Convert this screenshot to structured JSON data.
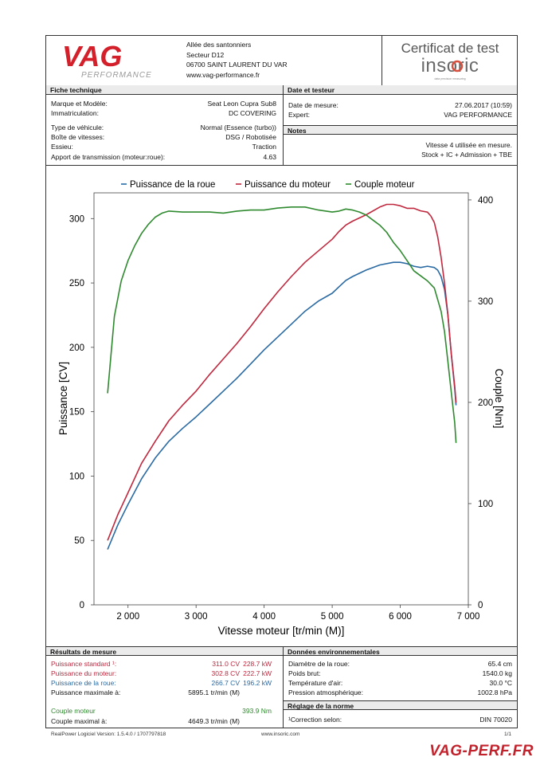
{
  "header": {
    "address": [
      "Allée des santonniers",
      "Secteur D12",
      "06700 SAINT LAURENT DU VAR",
      "www.vag-performance.fr"
    ],
    "logo_text": "VAG",
    "logo_sub": "PERFORMANCE",
    "cert_title": "Certificat de test",
    "cert_brand": "insoric",
    "cert_tagline": "data precision measuring"
  },
  "fiche": {
    "title": "Fiche technique",
    "rows": [
      {
        "label": "Marque et Modèle:",
        "value": "Seat Leon Cupra Sub8"
      },
      {
        "label": "Immatriculation:",
        "value": "DC COVERING"
      },
      {
        "label": "Type de véhicule:",
        "value": "Normal (Essence (turbo))"
      },
      {
        "label": "Boîte de vitesses:",
        "value": "DSG / Robotisée"
      },
      {
        "label": "Essieu:",
        "value": "Traction"
      },
      {
        "label": "Apport de transmission (moteur:roue):",
        "value": "4.63"
      }
    ]
  },
  "date_testeur": {
    "title": "Date et testeur",
    "rows": [
      {
        "label": "Date de mesure:",
        "value": "27.06.2017 (10:59)"
      },
      {
        "label": "Expert:",
        "value": "VAG PERFORMANCE"
      }
    ]
  },
  "notes": {
    "title": "Notes",
    "lines": [
      "Vitesse 4 utilisée en mesure.",
      "Stock + IC + Admission + TBE"
    ]
  },
  "chart_data": {
    "type": "line",
    "xlabel": "Vitesse moteur [tr/min (M)]",
    "ylabel": "Puissance [CV]",
    "y2label": "Couple [Nm]",
    "xlim": [
      1500,
      7000
    ],
    "ylim": [
      0,
      320
    ],
    "y2lim": [
      0,
      407
    ],
    "x_ticks": [
      "2 000",
      "3 000",
      "4 000",
      "5 000",
      "6 000",
      "7 000"
    ],
    "x_tick_values": [
      2000,
      3000,
      4000,
      5000,
      6000,
      7000
    ],
    "y_ticks": [
      "0",
      "50",
      "100",
      "150",
      "200",
      "250",
      "300"
    ],
    "y_tick_values": [
      0,
      50,
      100,
      150,
      200,
      250,
      300
    ],
    "y2_ticks": [
      "0",
      "100",
      "200",
      "300",
      "400"
    ],
    "y2_tick_values": [
      0,
      100,
      200,
      300,
      400
    ],
    "legend_position": "top",
    "grid": false,
    "series": [
      {
        "name": "Puissance de la roue",
        "color": "#2a6aa3",
        "axis": "left",
        "x": [
          1700,
          1850,
          2000,
          2200,
          2400,
          2600,
          2800,
          3000,
          3200,
          3400,
          3600,
          3800,
          4000,
          4200,
          4400,
          4600,
          4800,
          5000,
          5100,
          5200,
          5300,
          5500,
          5700,
          5900,
          6000,
          6100,
          6200,
          6300,
          6400,
          6500,
          6550,
          6600,
          6650,
          6700,
          6750,
          6800,
          6820
        ],
        "y": [
          43,
          62,
          78,
          98,
          114,
          127,
          137,
          146,
          156,
          166,
          176,
          187,
          198,
          208,
          218,
          228,
          236,
          242,
          247,
          252,
          255,
          260,
          264,
          266,
          266,
          265,
          263,
          262,
          263,
          262,
          260,
          255,
          245,
          225,
          195,
          168,
          155
        ]
      },
      {
        "name": "Puissance du moteur",
        "color": "#c0283e",
        "axis": "left",
        "x": [
          1700,
          1850,
          2000,
          2200,
          2400,
          2600,
          2800,
          3000,
          3200,
          3400,
          3600,
          3800,
          4000,
          4200,
          4400,
          4600,
          4800,
          5000,
          5100,
          5200,
          5300,
          5500,
          5700,
          5800,
          5900,
          6000,
          6100,
          6200,
          6300,
          6400,
          6450,
          6500,
          6550,
          6600,
          6650,
          6700,
          6750,
          6800,
          6820
        ],
        "y": [
          50,
          70,
          87,
          110,
          127,
          143,
          155,
          166,
          179,
          191,
          203,
          216,
          230,
          243,
          255,
          266,
          275,
          284,
          290,
          295,
          298,
          303,
          309,
          311,
          311,
          310,
          308,
          308,
          306,
          305,
          302,
          297,
          286,
          270,
          250,
          225,
          195,
          170,
          157
        ]
      },
      {
        "name": "Couple moteur",
        "color": "#2f8a2f",
        "axis": "right",
        "x": [
          1700,
          1800,
          1900,
          2000,
          2100,
          2200,
          2300,
          2400,
          2500,
          2600,
          2800,
          3000,
          3200,
          3400,
          3600,
          3800,
          4000,
          4200,
          4400,
          4600,
          4800,
          5000,
          5100,
          5200,
          5300,
          5400,
          5500,
          5600,
          5700,
          5800,
          5900,
          6000,
          6100,
          6200,
          6300,
          6400,
          6500,
          6600,
          6650,
          6700,
          6750,
          6800,
          6820
        ],
        "y": [
          209,
          285,
          320,
          340,
          355,
          367,
          376,
          383,
          387,
          389,
          388,
          388,
          388,
          387,
          389,
          390,
          390,
          392,
          393,
          393,
          390,
          388,
          389,
          391,
          390,
          388,
          385,
          380,
          375,
          368,
          358,
          350,
          340,
          330,
          325,
          320,
          313,
          290,
          270,
          240,
          210,
          180,
          160
        ]
      }
    ]
  },
  "results": {
    "title": "Résultats de mesure",
    "rows": [
      {
        "label": "Puissance standard ¹:",
        "v1": "311.0 CV",
        "v2": "228.7 kW",
        "color": "red"
      },
      {
        "label": "Puissance du moteur:",
        "v1": "302.8 CV",
        "v2": "222.7 kW",
        "color": "red"
      },
      {
        "label": "Puissance de la roue:",
        "v1": "266.7 CV",
        "v2": "196.2 kW",
        "color": "blue"
      },
      {
        "label": "Puissance maximale à:",
        "v1": "5895.1 tr/min (M)",
        "v2": "",
        "color": "black"
      },
      {
        "label": "Couple moteur",
        "v1": "",
        "v2": "393.9 Nm",
        "color": "green"
      },
      {
        "label": "Couple maximal à:",
        "v1": "4649.3 tr/min (M)",
        "v2": "",
        "color": "black"
      }
    ]
  },
  "env": {
    "title": "Données environnementales",
    "rows": [
      {
        "label": "Diamètre de la roue:",
        "value": "65.4 cm"
      },
      {
        "label": "Poids brut:",
        "value": "1540.0 kg"
      },
      {
        "label": "Température d'air:",
        "value": "30.0 °C"
      },
      {
        "label": "Pression atmosphérique:",
        "value": "1002.8 hPa"
      }
    ]
  },
  "norme": {
    "title": "Réglage de la norme",
    "label": "¹Correction selon:",
    "value": "DIN 70020"
  },
  "footer": {
    "software": "RealPower Logiciel Version: 1.5.4.0 / 1707797818",
    "url": "www.insoric.com",
    "page": "1/1",
    "brand": "VAG-PERF.FR"
  }
}
